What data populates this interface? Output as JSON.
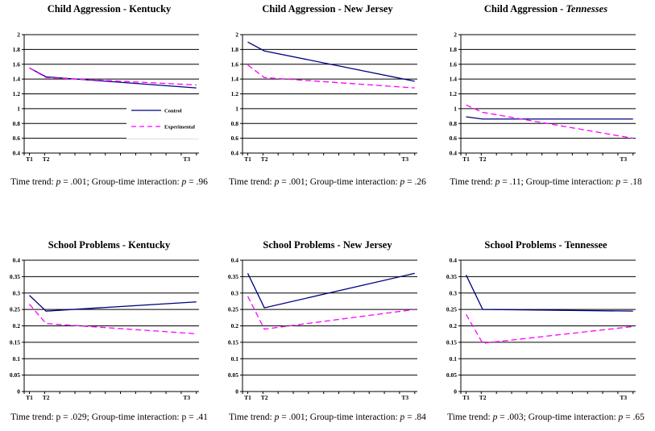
{
  "figure": {
    "background": "#ffffff",
    "colors": {
      "control": "#000080",
      "experimental": "#ff00ff",
      "grid": "#000000",
      "text": "#000000"
    },
    "legend": {
      "control_label": "Control",
      "experimental_label": "Experimental"
    }
  },
  "chart_data": [
    {
      "type": "line",
      "title_segments": [
        {
          "text": "Child Aggression - Kentucky"
        }
      ],
      "x_tick_labels": [
        "T1",
        "T2",
        "T3"
      ],
      "ylim": [
        0.4,
        2
      ],
      "ytick_labels": [
        "2",
        "1.8",
        "1.6",
        "1.4",
        "1.2",
        "1",
        "0.8",
        "0.6",
        "0.4"
      ],
      "grid": true,
      "show_legend": true,
      "series": [
        {
          "name": "Control",
          "style": "solid",
          "color": "#000080",
          "values": [
            1.55,
            1.43,
            1.28
          ]
        },
        {
          "name": "Experimental",
          "style": "dashed",
          "color": "#ff00ff",
          "values": [
            1.55,
            1.42,
            1.32
          ]
        }
      ],
      "caption_segments": [
        {
          "text": "Time trend: "
        },
        {
          "text": "p",
          "italic": true
        },
        {
          "text": " = .001; Group-time interaction: "
        },
        {
          "text": "p",
          "italic": true
        },
        {
          "text": " = .96"
        }
      ]
    },
    {
      "type": "line",
      "title_segments": [
        {
          "text": "Child Aggression - New Jersey"
        }
      ],
      "x_tick_labels": [
        "T1",
        "T2",
        "T3"
      ],
      "ylim": [
        0.4,
        2
      ],
      "ytick_labels": [
        "2",
        "1.8",
        "1.6",
        "1.4",
        "1.2",
        "1",
        "0.8",
        "0.6",
        "0.4"
      ],
      "grid": true,
      "show_legend": false,
      "series": [
        {
          "name": "Control",
          "style": "solid",
          "color": "#000080",
          "values": [
            1.9,
            1.78,
            1.37
          ]
        },
        {
          "name": "Experimental",
          "style": "dashed",
          "color": "#ff00ff",
          "values": [
            1.59,
            1.42,
            1.28
          ]
        }
      ],
      "caption_segments": [
        {
          "text": "Time trend: "
        },
        {
          "text": "p",
          "italic": true
        },
        {
          "text": " = .001; Group-time interaction: "
        },
        {
          "text": "p",
          "italic": true
        },
        {
          "text": " = .26"
        }
      ]
    },
    {
      "type": "line",
      "title_segments": [
        {
          "text": "Child Aggression - "
        },
        {
          "text": "Tennesses",
          "italic": true
        }
      ],
      "x_tick_labels": [
        "T1",
        "T2",
        "T3"
      ],
      "ylim": [
        0.4,
        2
      ],
      "ytick_labels": [
        "2",
        "1.8",
        "1.6",
        "1.4",
        "1.2",
        "1",
        "0.8",
        "0.6",
        "0.4"
      ],
      "grid": true,
      "show_legend": false,
      "series": [
        {
          "name": "Control",
          "style": "solid",
          "color": "#000080",
          "values": [
            0.89,
            0.86,
            0.86
          ]
        },
        {
          "name": "Experimental",
          "style": "dashed",
          "color": "#ff00ff",
          "values": [
            1.05,
            0.95,
            0.6
          ]
        }
      ],
      "caption_segments": [
        {
          "text": "Time trend: "
        },
        {
          "text": "p",
          "italic": true
        },
        {
          "text": " = .11; Group-time interaction: "
        },
        {
          "text": "p",
          "italic": true
        },
        {
          "text": " = .18"
        }
      ]
    },
    {
      "type": "line",
      "title_segments": [
        {
          "text": "School Problems - Kentucky"
        }
      ],
      "x_tick_labels": [
        "T1",
        "T2",
        "T3"
      ],
      "ylim": [
        0,
        0.4
      ],
      "ytick_labels": [
        "0.4",
        "0.35",
        "0.3",
        "0.25",
        "0.2",
        "0.15",
        "0.1",
        "0.05",
        "0"
      ],
      "grid": true,
      "show_legend": false,
      "series": [
        {
          "name": "Control",
          "style": "solid",
          "color": "#000080",
          "values": [
            0.293,
            0.245,
            0.273
          ]
        },
        {
          "name": "Experimental",
          "style": "dashed",
          "color": "#ff00ff",
          "values": [
            0.266,
            0.207,
            0.176
          ]
        }
      ],
      "caption_segments": [
        {
          "text": "Time trend: p = .029; Group-time interaction: p = .41"
        }
      ]
    },
    {
      "type": "line",
      "title_segments": [
        {
          "text": "School Problems - New Jersey"
        }
      ],
      "x_tick_labels": [
        "T1",
        "T2",
        "T3"
      ],
      "ylim": [
        0,
        0.4
      ],
      "ytick_labels": [
        "0.4",
        "0.35",
        "0.3",
        "0.25",
        "0.2",
        "0.15",
        "0.1",
        "0.05",
        "0"
      ],
      "grid": true,
      "show_legend": false,
      "series": [
        {
          "name": "Control",
          "style": "solid",
          "color": "#000080",
          "values": [
            0.36,
            0.255,
            0.36
          ]
        },
        {
          "name": "Experimental",
          "style": "dashed",
          "color": "#ff00ff",
          "values": [
            0.29,
            0.19,
            0.25
          ]
        }
      ],
      "caption_segments": [
        {
          "text": "Time trend: "
        },
        {
          "text": "p",
          "italic": true
        },
        {
          "text": " = .001; Group-time interaction: "
        },
        {
          "text": "p",
          "italic": true
        },
        {
          "text": " = .84"
        }
      ]
    },
    {
      "type": "line",
      "title_segments": [
        {
          "text": "School Problems - Tennessee"
        }
      ],
      "x_tick_labels": [
        "T1",
        "T2",
        "T3"
      ],
      "ylim": [
        0,
        0.4
      ],
      "ytick_labels": [
        "0.4",
        "0.35",
        "0.3",
        "0.25",
        "0.2",
        "0.15",
        "0.1",
        "0.05",
        "0"
      ],
      "grid": true,
      "show_legend": false,
      "series": [
        {
          "name": "Control",
          "style": "solid",
          "color": "#000080",
          "values": [
            0.355,
            0.25,
            0.245
          ]
        },
        {
          "name": "Experimental",
          "style": "dashed",
          "color": "#ff00ff",
          "values": [
            0.235,
            0.147,
            0.198
          ]
        }
      ],
      "caption_segments": [
        {
          "text": "Time trend: "
        },
        {
          "text": "p",
          "italic": true
        },
        {
          "text": " = .003; Group-time interaction: "
        },
        {
          "text": "p",
          "italic": true
        },
        {
          "text": " = .65"
        }
      ]
    }
  ]
}
